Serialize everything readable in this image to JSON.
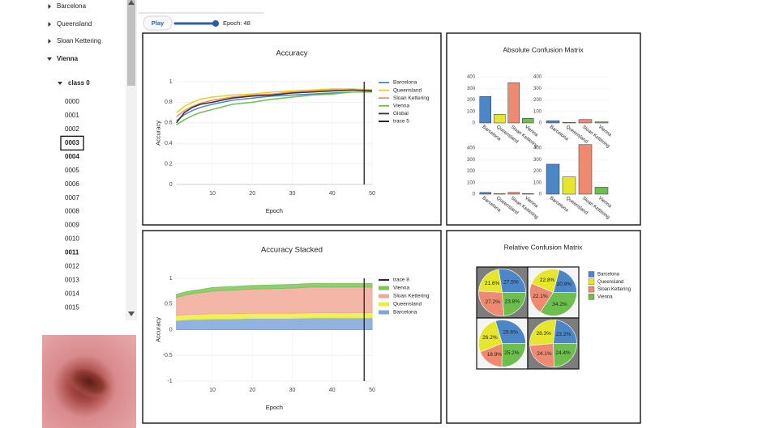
{
  "sidebar": {
    "sites": [
      "Barcelona",
      "Queensland",
      "Sloan Kettering",
      "Vienna"
    ],
    "class": "class 0",
    "items": [
      "0000",
      "0001",
      "0002",
      "0003",
      "0004",
      "0005",
      "0006",
      "0007",
      "0008",
      "0009",
      "0010",
      "0011",
      "0012",
      "0013",
      "0014",
      "0015"
    ]
  },
  "controls": {
    "play": "Play",
    "epoch_label": "Epoch: 48"
  },
  "chart_data": [
    {
      "type": "line",
      "title": "Accuracy",
      "x_label": "Epoch",
      "y_label": "Accuracy",
      "x": [
        1,
        3,
        5,
        7,
        10,
        15,
        20,
        25,
        30,
        35,
        40,
        45,
        50
      ],
      "xlim": [
        1,
        50
      ],
      "xticks": [
        10,
        20,
        30,
        40,
        50
      ],
      "ylim": [
        0,
        1
      ],
      "yticks": [
        0,
        0.2,
        0.4,
        0.6,
        0.8,
        1
      ],
      "grid": true,
      "series": [
        {
          "name": "Barcelona",
          "color": "#4a86c8",
          "values": [
            0.62,
            0.68,
            0.72,
            0.75,
            0.78,
            0.82,
            0.84,
            0.86,
            0.87,
            0.88,
            0.89,
            0.9,
            0.9
          ]
        },
        {
          "name": "Queensland",
          "color": "#e6d21c",
          "values": [
            0.7,
            0.76,
            0.8,
            0.83,
            0.85,
            0.87,
            0.88,
            0.9,
            0.91,
            0.92,
            0.93,
            0.93,
            0.92
          ]
        },
        {
          "name": "Sloan Kettering",
          "color": "#ee8a72",
          "values": [
            0.66,
            0.72,
            0.76,
            0.79,
            0.82,
            0.85,
            0.87,
            0.88,
            0.9,
            0.91,
            0.92,
            0.92,
            0.92
          ]
        },
        {
          "name": "Vienna",
          "color": "#6cbf4c",
          "values": [
            0.58,
            0.63,
            0.67,
            0.7,
            0.73,
            0.78,
            0.8,
            0.83,
            0.85,
            0.87,
            0.88,
            0.9,
            0.9
          ]
        },
        {
          "name": "Global",
          "color": "#333333",
          "values": [
            0.6,
            0.7,
            0.75,
            0.78,
            0.8,
            0.84,
            0.86,
            0.87,
            0.89,
            0.9,
            0.91,
            0.92,
            0.91
          ]
        },
        {
          "name": "trace 5",
          "color": "#111111",
          "x": [
            48,
            48
          ],
          "values": [
            0,
            1
          ]
        }
      ]
    },
    {
      "type": "bar",
      "title": "Absolute Confusion Matrix",
      "categories": [
        "Barcelona",
        "Queensland",
        "Sloan Kettering",
        "Vienna"
      ],
      "colors": [
        "#4a86c8",
        "#e6e62e",
        "#ee8a72",
        "#6cbf4c"
      ],
      "ylim": [
        0,
        440
      ],
      "yticks": [
        0,
        100,
        200,
        300,
        400
      ],
      "panels": [
        {
          "values": [
            230,
            75,
            350,
            40
          ]
        },
        {
          "values": [
            20,
            5,
            30,
            10
          ]
        },
        {
          "values": [
            15,
            5,
            15,
            5
          ]
        },
        {
          "values": [
            260,
            150,
            430,
            60
          ]
        }
      ]
    },
    {
      "type": "area",
      "title": "Accuracy Stacked",
      "x_label": "Epoch",
      "y_label": "Accuracy",
      "x": [
        1,
        3,
        5,
        7,
        10,
        15,
        20,
        25,
        30,
        35,
        40,
        45,
        50
      ],
      "xlim": [
        1,
        50
      ],
      "xticks": [
        10,
        20,
        30,
        40,
        50
      ],
      "ylim": [
        -1,
        1
      ],
      "yticks": [
        -1,
        -0.5,
        0,
        0.5,
        1
      ],
      "grid": true,
      "series": [
        {
          "name": "Barcelona",
          "color": "#7ea6dc",
          "values": [
            0.18,
            0.19,
            0.2,
            0.2,
            0.21,
            0.21,
            0.22,
            0.22,
            0.22,
            0.23,
            0.23,
            0.23,
            0.23
          ]
        },
        {
          "name": "Queensland",
          "color": "#eded3a",
          "values": [
            0.1,
            0.1,
            0.1,
            0.1,
            0.1,
            0.1,
            0.1,
            0.1,
            0.1,
            0.1,
            0.1,
            0.1,
            0.1
          ]
        },
        {
          "name": "Sloan Kettering",
          "color": "#f2aa98",
          "values": [
            0.35,
            0.38,
            0.4,
            0.42,
            0.44,
            0.46,
            0.47,
            0.48,
            0.49,
            0.5,
            0.5,
            0.5,
            0.5
          ]
        },
        {
          "name": "Vienna",
          "color": "#7cc65a",
          "values": [
            0.06,
            0.06,
            0.06,
            0.06,
            0.07,
            0.07,
            0.07,
            0.07,
            0.07,
            0.07,
            0.07,
            0.07,
            0.07
          ]
        },
        {
          "name": "trace 8",
          "color": "#111111",
          "x": [
            48,
            48
          ],
          "values": [
            -1,
            1
          ]
        }
      ]
    },
    {
      "type": "pie",
      "title": "Relative Confusion Matrix",
      "categories": [
        "Barcelona",
        "Queensland",
        "Sloan Kettering",
        "Vienna"
      ],
      "colors": [
        "#4a86c8",
        "#e6e62e",
        "#ee8a72",
        "#6cbf4c"
      ],
      "panels": [
        {
          "values": [
            27.5,
            21.6,
            27.2,
            23.8
          ],
          "value_labels": [
            "27.5%",
            "21.6%",
            "27.2%",
            "23.8%"
          ]
        },
        {
          "values": [
            20.9,
            22.8,
            22.1,
            34.2
          ],
          "value_labels": [
            "20.9%",
            "22.8%",
            "22.1%",
            "34.2%"
          ]
        },
        {
          "values": [
            29.6,
            26.2,
            18.9,
            25.2
          ],
          "value_labels": [
            "29.6%",
            "26.2%",
            "18.9%",
            "25.2%"
          ]
        },
        {
          "values": [
            23.2,
            28.3,
            24.1,
            24.4
          ],
          "value_labels": [
            "23.2%",
            "28.3%",
            "24.1%",
            "24.4%"
          ]
        }
      ]
    }
  ]
}
